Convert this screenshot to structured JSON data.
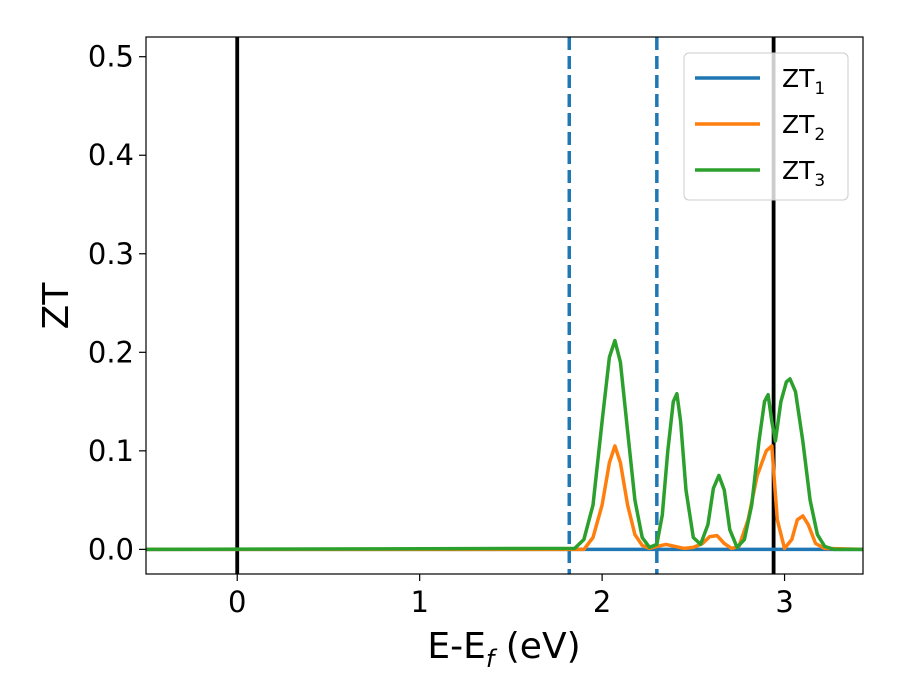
{
  "chart_data": {
    "type": "line",
    "xlabel": "E-E",
    "xlabel_sub": "f",
    "xlabel_unit": " (eV)",
    "ylabel": "ZT",
    "xlim": [
      -0.5,
      3.43
    ],
    "ylim": [
      -0.025,
      0.52
    ],
    "xticks": [
      0,
      1,
      2,
      3
    ],
    "yticks": [
      0.0,
      0.1,
      0.2,
      0.3,
      0.4,
      0.5
    ],
    "xtick_labels": [
      "0",
      "1",
      "2",
      "3"
    ],
    "ytick_labels": [
      "0.0",
      "0.1",
      "0.2",
      "0.3",
      "0.4",
      "0.5"
    ],
    "grid": false,
    "legend_position": "top-right",
    "vertical_lines": [
      {
        "x": 0.0,
        "style": "solid",
        "color": "#000000"
      },
      {
        "x": 2.94,
        "style": "solid",
        "color": "#000000"
      },
      {
        "x": 1.82,
        "style": "dashed",
        "color": "#1f77b4"
      },
      {
        "x": 2.3,
        "style": "dashed",
        "color": "#1f77b4"
      }
    ],
    "series": [
      {
        "name": "ZT",
        "name_sub": "1",
        "color": "#1f77b4",
        "x": [
          -0.5,
          3.43
        ],
        "y": [
          0.0,
          0.0
        ]
      },
      {
        "name": "ZT",
        "name_sub": "2",
        "color": "#ff7f0e",
        "x": [
          -0.5,
          1.9,
          1.95,
          2.0,
          2.04,
          2.07,
          2.1,
          2.14,
          2.18,
          2.22,
          2.26,
          2.3,
          2.35,
          2.4,
          2.45,
          2.5,
          2.55,
          2.59,
          2.63,
          2.67,
          2.71,
          2.75,
          2.8,
          2.85,
          2.9,
          2.93,
          2.96,
          3.0,
          3.04,
          3.07,
          3.1,
          3.13,
          3.17,
          3.22,
          3.43
        ],
        "y": [
          0.0,
          0.0,
          0.012,
          0.045,
          0.088,
          0.105,
          0.088,
          0.045,
          0.015,
          0.004,
          0.001,
          0.003,
          0.005,
          0.003,
          0.001,
          0.002,
          0.006,
          0.013,
          0.014,
          0.006,
          0.001,
          0.003,
          0.03,
          0.075,
          0.1,
          0.105,
          0.03,
          0.001,
          0.01,
          0.03,
          0.034,
          0.025,
          0.006,
          0.001,
          0.0
        ]
      },
      {
        "name": "ZT",
        "name_sub": "3",
        "color": "#2ca02c",
        "x": [
          -0.5,
          1.85,
          1.9,
          1.95,
          2.0,
          2.04,
          2.07,
          2.1,
          2.14,
          2.18,
          2.22,
          2.26,
          2.3,
          2.33,
          2.36,
          2.39,
          2.41,
          2.43,
          2.46,
          2.5,
          2.54,
          2.58,
          2.61,
          2.64,
          2.67,
          2.7,
          2.74,
          2.78,
          2.82,
          2.86,
          2.89,
          2.91,
          2.93,
          2.95,
          2.98,
          3.01,
          3.03,
          3.06,
          3.1,
          3.14,
          3.18,
          3.22,
          3.27,
          3.43
        ],
        "y": [
          0.0,
          0.001,
          0.01,
          0.045,
          0.13,
          0.195,
          0.212,
          0.19,
          0.12,
          0.05,
          0.012,
          0.002,
          0.005,
          0.035,
          0.1,
          0.15,
          0.158,
          0.13,
          0.06,
          0.012,
          0.005,
          0.025,
          0.062,
          0.075,
          0.06,
          0.02,
          0.002,
          0.01,
          0.045,
          0.11,
          0.15,
          0.157,
          0.13,
          0.11,
          0.15,
          0.17,
          0.173,
          0.16,
          0.11,
          0.05,
          0.015,
          0.003,
          0.0,
          0.0
        ]
      }
    ]
  }
}
